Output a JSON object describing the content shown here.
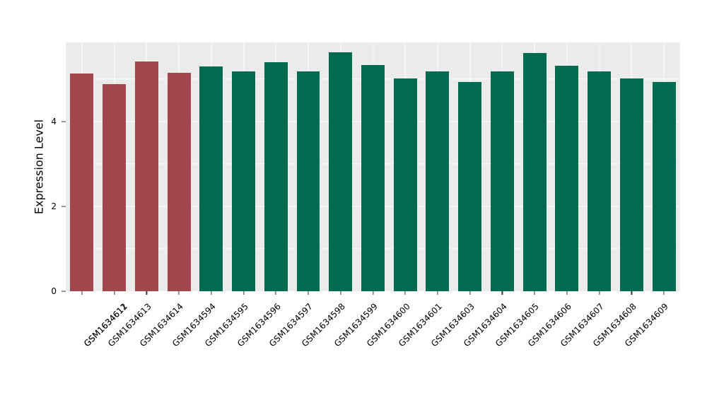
{
  "chart_data": {
    "type": "bar",
    "title": "",
    "xlabel": "",
    "ylabel": "Expression Level",
    "ylim": [
      0,
      5.87
    ],
    "yticks": [
      0,
      2,
      4
    ],
    "yticks_minor": [
      1,
      3,
      5
    ],
    "grid": "on",
    "legend": "none",
    "plot_background": "#ebebeb",
    "grid_color": "#ffffff",
    "tick_color": "#333333",
    "categories": [
      "GSM1634611",
      "GSM1634612",
      "GSM1634613",
      "GSM1634614",
      "GSM1634594",
      "GSM1634595",
      "GSM1634596",
      "GSM1634597",
      "GSM1634598",
      "GSM1634599",
      "GSM1634600",
      "GSM1634601",
      "GSM1634603",
      "GSM1634604",
      "GSM1634605",
      "GSM1634606",
      "GSM1634607",
      "GSM1634608",
      "GSM1634609"
    ],
    "values": [
      5.14,
      4.89,
      5.42,
      5.16,
      5.31,
      5.19,
      5.41,
      5.19,
      5.64,
      5.34,
      5.02,
      5.19,
      4.94,
      5.19,
      5.62,
      5.32,
      5.19,
      5.02,
      4.94
    ],
    "bar_groups": [
      "red",
      "red",
      "red",
      "red",
      "green",
      "green",
      "green",
      "green",
      "green",
      "green",
      "green",
      "green",
      "green",
      "green",
      "green",
      "green",
      "green",
      "green",
      "green"
    ],
    "group_colors": {
      "red": "#a3474f",
      "green": "#006b4e"
    }
  }
}
